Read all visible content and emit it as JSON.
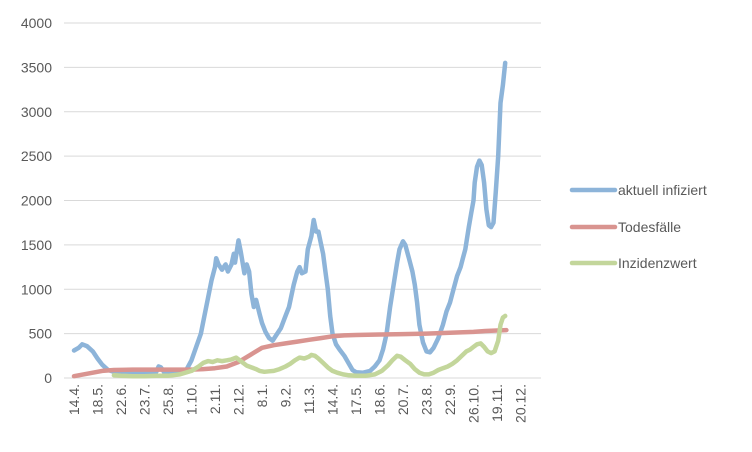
{
  "chart_data": {
    "type": "line",
    "title": "",
    "xlabel": "",
    "ylabel": "",
    "ylim": [
      0,
      4000
    ],
    "yticks": [
      0,
      500,
      1000,
      1500,
      2000,
      2500,
      3000,
      3500,
      4000
    ],
    "categories": [
      "14.4.",
      "18.5.",
      "22.6.",
      "23.7.",
      "25.8.",
      "1.10.",
      "2.11.",
      "2.12.",
      "8.1.",
      "9.2.",
      "11.3.",
      "14.4.",
      "17.5.",
      "18.6.",
      "20.7.",
      "23.8.",
      "22.9.",
      "26.10.",
      "19.11.",
      "20.12."
    ],
    "grid": "horizontal",
    "legend_position": "right",
    "series": [
      {
        "name": "aktuell infiziert",
        "color": "#8db4d9",
        "points": [
          [
            0,
            310
          ],
          [
            0.2,
            340
          ],
          [
            0.35,
            380
          ],
          [
            0.55,
            360
          ],
          [
            0.8,
            300
          ],
          [
            1.0,
            220
          ],
          [
            1.2,
            150
          ],
          [
            1.45,
            90
          ],
          [
            1.7,
            70
          ],
          [
            2.0,
            65
          ],
          [
            2.4,
            70
          ],
          [
            2.8,
            70
          ],
          [
            3.0,
            60
          ],
          [
            3.3,
            55
          ],
          [
            3.5,
            70
          ],
          [
            3.6,
            130
          ],
          [
            3.7,
            120
          ],
          [
            3.85,
            60
          ],
          [
            4.2,
            55
          ],
          [
            4.5,
            55
          ],
          [
            4.8,
            100
          ],
          [
            5.0,
            200
          ],
          [
            5.2,
            350
          ],
          [
            5.4,
            500
          ],
          [
            5.55,
            700
          ],
          [
            5.7,
            900
          ],
          [
            5.85,
            1100
          ],
          [
            6.0,
            1250
          ],
          [
            6.05,
            1350
          ],
          [
            6.15,
            1280
          ],
          [
            6.3,
            1220
          ],
          [
            6.45,
            1280
          ],
          [
            6.55,
            1200
          ],
          [
            6.7,
            1280
          ],
          [
            6.8,
            1400
          ],
          [
            6.85,
            1300
          ],
          [
            7.0,
            1550
          ],
          [
            7.1,
            1420
          ],
          [
            7.25,
            1180
          ],
          [
            7.35,
            1280
          ],
          [
            7.45,
            1200
          ],
          [
            7.55,
            950
          ],
          [
            7.65,
            800
          ],
          [
            7.75,
            880
          ],
          [
            7.9,
            720
          ],
          [
            8.0,
            620
          ],
          [
            8.15,
            520
          ],
          [
            8.3,
            450
          ],
          [
            8.45,
            420
          ],
          [
            8.6,
            480
          ],
          [
            8.8,
            560
          ],
          [
            9.0,
            700
          ],
          [
            9.15,
            800
          ],
          [
            9.35,
            1050
          ],
          [
            9.5,
            1200
          ],
          [
            9.6,
            1250
          ],
          [
            9.7,
            1180
          ],
          [
            9.85,
            1200
          ],
          [
            9.95,
            1450
          ],
          [
            10.1,
            1600
          ],
          [
            10.2,
            1780
          ],
          [
            10.3,
            1650
          ],
          [
            10.4,
            1650
          ],
          [
            10.5,
            1520
          ],
          [
            10.6,
            1400
          ],
          [
            10.7,
            1200
          ],
          [
            10.8,
            1000
          ],
          [
            10.9,
            700
          ],
          [
            11.0,
            500
          ],
          [
            11.15,
            380
          ],
          [
            11.3,
            320
          ],
          [
            11.5,
            250
          ],
          [
            11.7,
            160
          ],
          [
            11.85,
            90
          ],
          [
            12.0,
            65
          ],
          [
            12.3,
            60
          ],
          [
            12.6,
            80
          ],
          [
            12.8,
            130
          ],
          [
            13.0,
            200
          ],
          [
            13.15,
            320
          ],
          [
            13.3,
            500
          ],
          [
            13.45,
            800
          ],
          [
            13.6,
            1050
          ],
          [
            13.75,
            1300
          ],
          [
            13.85,
            1450
          ],
          [
            14.0,
            1540
          ],
          [
            14.1,
            1500
          ],
          [
            14.25,
            1350
          ],
          [
            14.4,
            1200
          ],
          [
            14.5,
            1050
          ],
          [
            14.6,
            850
          ],
          [
            14.7,
            600
          ],
          [
            14.85,
            400
          ],
          [
            15.0,
            300
          ],
          [
            15.15,
            290
          ],
          [
            15.3,
            340
          ],
          [
            15.5,
            450
          ],
          [
            15.7,
            600
          ],
          [
            15.85,
            750
          ],
          [
            16.0,
            850
          ],
          [
            16.15,
            1000
          ],
          [
            16.3,
            1150
          ],
          [
            16.45,
            1250
          ],
          [
            16.55,
            1350
          ],
          [
            16.65,
            1450
          ],
          [
            16.8,
            1700
          ],
          [
            16.9,
            1850
          ],
          [
            17.0,
            2000
          ],
          [
            17.05,
            2200
          ],
          [
            17.15,
            2380
          ],
          [
            17.25,
            2450
          ],
          [
            17.35,
            2400
          ],
          [
            17.45,
            2200
          ],
          [
            17.55,
            1900
          ],
          [
            17.65,
            1720
          ],
          [
            17.75,
            1700
          ],
          [
            17.85,
            1750
          ],
          [
            17.95,
            2100
          ],
          [
            18.05,
            2500
          ],
          [
            18.15,
            3100
          ],
          [
            18.25,
            3300
          ],
          [
            18.35,
            3550
          ]
        ]
      },
      {
        "name": "Todesfälle",
        "color": "#d99490",
        "points": [
          [
            0,
            20
          ],
          [
            0.4,
            40
          ],
          [
            0.8,
            60
          ],
          [
            1.2,
            80
          ],
          [
            1.7,
            90
          ],
          [
            2.5,
            95
          ],
          [
            3.5,
            95
          ],
          [
            4.5,
            95
          ],
          [
            5.0,
            95
          ],
          [
            5.5,
            100
          ],
          [
            6.0,
            110
          ],
          [
            6.5,
            130
          ],
          [
            7.0,
            180
          ],
          [
            7.5,
            260
          ],
          [
            8.0,
            340
          ],
          [
            8.5,
            370
          ],
          [
            9.0,
            390
          ],
          [
            9.5,
            410
          ],
          [
            10.0,
            430
          ],
          [
            10.5,
            450
          ],
          [
            11.0,
            470
          ],
          [
            11.5,
            480
          ],
          [
            12.0,
            485
          ],
          [
            13.0,
            490
          ],
          [
            14.0,
            495
          ],
          [
            15.0,
            500
          ],
          [
            16.0,
            510
          ],
          [
            17.0,
            520
          ],
          [
            17.5,
            530
          ],
          [
            18.0,
            535
          ],
          [
            18.4,
            540
          ]
        ]
      },
      {
        "name": "Inzidenzwert",
        "color": "#c3d69b",
        "points": [
          [
            1.7,
            30
          ],
          [
            2.0,
            25
          ],
          [
            2.5,
            20
          ],
          [
            3.0,
            20
          ],
          [
            3.5,
            25
          ],
          [
            4.0,
            25
          ],
          [
            4.5,
            40
          ],
          [
            5.0,
            80
          ],
          [
            5.3,
            130
          ],
          [
            5.5,
            170
          ],
          [
            5.7,
            190
          ],
          [
            5.9,
            180
          ],
          [
            6.1,
            200
          ],
          [
            6.3,
            190
          ],
          [
            6.5,
            200
          ],
          [
            6.7,
            210
          ],
          [
            6.9,
            230
          ],
          [
            7.05,
            200
          ],
          [
            7.2,
            170
          ],
          [
            7.35,
            140
          ],
          [
            7.55,
            120
          ],
          [
            7.75,
            100
          ],
          [
            7.9,
            80
          ],
          [
            8.1,
            70
          ],
          [
            8.3,
            75
          ],
          [
            8.5,
            80
          ],
          [
            8.75,
            100
          ],
          [
            9.0,
            130
          ],
          [
            9.2,
            160
          ],
          [
            9.4,
            200
          ],
          [
            9.6,
            230
          ],
          [
            9.8,
            220
          ],
          [
            10.0,
            240
          ],
          [
            10.1,
            260
          ],
          [
            10.25,
            250
          ],
          [
            10.4,
            220
          ],
          [
            10.6,
            170
          ],
          [
            10.8,
            120
          ],
          [
            11.0,
            80
          ],
          [
            11.2,
            60
          ],
          [
            11.45,
            40
          ],
          [
            11.7,
            30
          ],
          [
            12.0,
            25
          ],
          [
            12.4,
            25
          ],
          [
            12.8,
            40
          ],
          [
            13.1,
            80
          ],
          [
            13.35,
            140
          ],
          [
            13.55,
            200
          ],
          [
            13.75,
            250
          ],
          [
            13.9,
            240
          ],
          [
            14.1,
            200
          ],
          [
            14.3,
            160
          ],
          [
            14.5,
            100
          ],
          [
            14.7,
            60
          ],
          [
            14.9,
            40
          ],
          [
            15.1,
            40
          ],
          [
            15.3,
            60
          ],
          [
            15.5,
            90
          ],
          [
            15.7,
            110
          ],
          [
            15.9,
            130
          ],
          [
            16.1,
            160
          ],
          [
            16.3,
            200
          ],
          [
            16.5,
            250
          ],
          [
            16.7,
            300
          ],
          [
            16.85,
            320
          ],
          [
            17.0,
            350
          ],
          [
            17.15,
            380
          ],
          [
            17.3,
            390
          ],
          [
            17.45,
            350
          ],
          [
            17.6,
            300
          ],
          [
            17.75,
            280
          ],
          [
            17.9,
            300
          ],
          [
            18.05,
            420
          ],
          [
            18.15,
            600
          ],
          [
            18.25,
            680
          ],
          [
            18.35,
            700
          ]
        ]
      }
    ]
  }
}
